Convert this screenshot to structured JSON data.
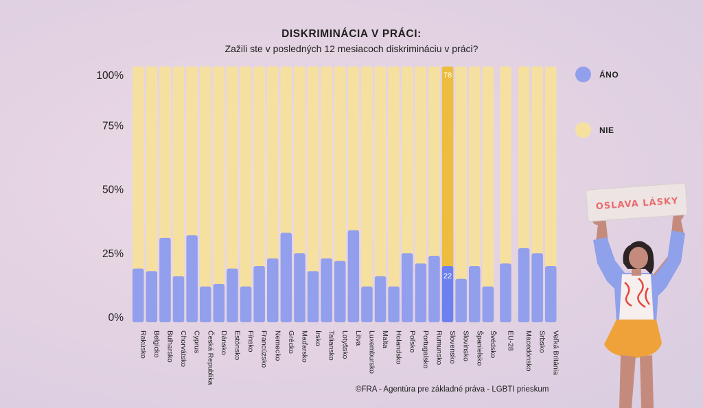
{
  "header": {
    "title": "DISKRIMINÁCIA V PRÁCI:",
    "subtitle": "Zažili ste v posledných 12 mesiacoch diskrimináciu v práci?"
  },
  "legend": {
    "ano": "ÁNO",
    "nie": "NIE"
  },
  "source": "©FRA - Agentúra pre základné práva - LGBTI prieskum",
  "sign_text": "OSLAVA LÁSKY",
  "colors": {
    "ano": "#929fec",
    "nie": "#f6e0a0",
    "ano_highlight": "#6c80ef",
    "nie_highlight": "#edbd3d",
    "highlight_label": "#ffffff"
  },
  "chart_data": {
    "type": "bar",
    "stacked": true,
    "title": "DISKRIMINÁCIA V PRÁCI:",
    "subtitle": "Zažili ste v posledných 12 mesiacoch diskrimináciu v práci?",
    "y_ticks": [
      "0%",
      "25%",
      "50%",
      "75%",
      "100%"
    ],
    "ylim": [
      0,
      100
    ],
    "categories": [
      "Rakúsko",
      "Belgicko",
      "Bulharsko",
      "Chorvátsko",
      "Cyprus",
      "Česká Republika",
      "Dánsko",
      "Estónsko",
      "Fínsko",
      "Francúzsko",
      "Nemecko",
      "Grécko",
      "Maďarsko",
      "Írsko",
      "Taliansko",
      "Lotyšsko",
      "Litva",
      "Luxembursko",
      "Malta",
      "Holandsko",
      "Poľsko",
      "Portugalsko",
      "Rumunsko",
      "Slovensko",
      "Slovinsko",
      "Španielsko",
      "Švédsko",
      "EU-28",
      "Macedónsko",
      "Srbsko",
      "Veľká Británia"
    ],
    "series": [
      {
        "name": "ÁNO",
        "values": [
          21,
          20,
          33,
          18,
          34,
          14,
          15,
          21,
          14,
          22,
          25,
          35,
          27,
          20,
          25,
          24,
          36,
          14,
          18,
          14,
          27,
          23,
          26,
          22,
          17,
          22,
          14,
          23,
          29,
          27,
          22
        ]
      },
      {
        "name": "NIE",
        "values": [
          79,
          80,
          67,
          82,
          66,
          86,
          85,
          79,
          86,
          78,
          75,
          65,
          73,
          80,
          75,
          76,
          64,
          86,
          82,
          86,
          73,
          77,
          74,
          78,
          83,
          78,
          86,
          77,
          71,
          73,
          78
        ]
      }
    ],
    "highlight": {
      "category": "Slovensko",
      "labels": [
        "22",
        "78"
      ]
    },
    "legend_position": "right",
    "grid": false
  }
}
